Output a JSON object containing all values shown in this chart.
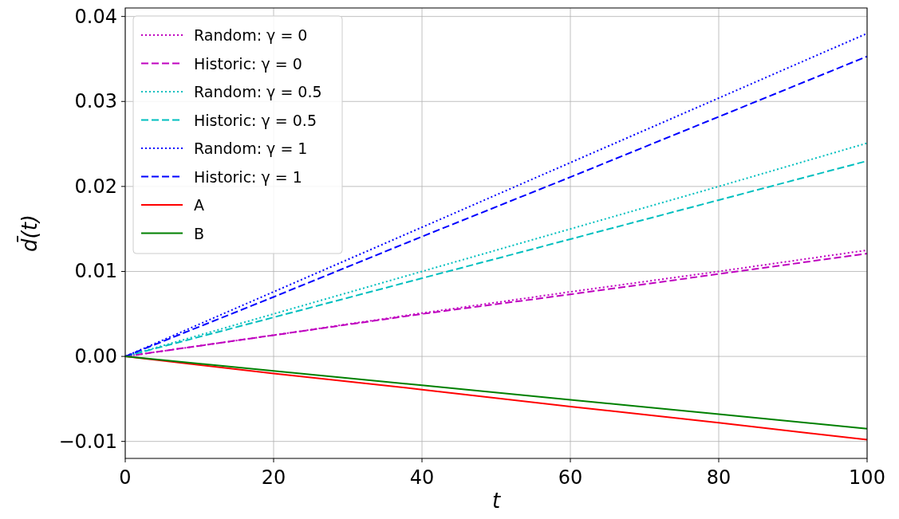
{
  "chart_data": {
    "type": "line",
    "xlabel": "t",
    "ylabel": "d̄(t)",
    "x": [
      0,
      20,
      40,
      60,
      80,
      100
    ],
    "series": [
      {
        "name": "Random: γ = 0",
        "color": "#bf00bf",
        "line_style": "dotted",
        "values": [
          0,
          0.0025,
          0.0051,
          0.0076,
          0.01,
          0.0125
        ]
      },
      {
        "name": "Historic: γ = 0",
        "color": "#bf00bf",
        "line_style": "dashed",
        "values": [
          0,
          0.0025,
          0.005,
          0.0073,
          0.0097,
          0.0121
        ]
      },
      {
        "name": "Random: γ = 0.5",
        "color": "#00bfbf",
        "line_style": "dotted",
        "values": [
          0,
          0.005,
          0.01,
          0.015,
          0.02,
          0.0251
        ]
      },
      {
        "name": "Historic: γ = 0.5",
        "color": "#00bfbf",
        "line_style": "dashed",
        "values": [
          0,
          0.0046,
          0.0092,
          0.0138,
          0.0184,
          0.023
        ]
      },
      {
        "name": "Random: γ = 1",
        "color": "#0000ff",
        "line_style": "dotted",
        "values": [
          0,
          0.0076,
          0.0152,
          0.0228,
          0.0304,
          0.038
        ]
      },
      {
        "name": "Historic: γ = 1",
        "color": "#0000ff",
        "line_style": "dashed",
        "values": [
          0,
          0.007,
          0.0141,
          0.0211,
          0.0282,
          0.0353
        ]
      },
      {
        "name": "A",
        "color": "#ff0000",
        "line_style": "solid",
        "values": [
          0,
          -0.002,
          -0.0039,
          -0.0059,
          -0.0078,
          -0.0098
        ]
      },
      {
        "name": "B",
        "color": "#008000",
        "line_style": "solid",
        "values": [
          0,
          -0.0017,
          -0.0034,
          -0.0051,
          -0.0068,
          -0.0085
        ]
      }
    ],
    "xlim": [
      0,
      100
    ],
    "xticks": [
      0,
      20,
      40,
      60,
      80,
      100
    ],
    "ylim": [
      -0.012,
      0.041
    ],
    "yticks": [
      {
        "value": -0.01,
        "label": "−0.01"
      },
      {
        "value": 0,
        "label": "0.00"
      },
      {
        "value": 0.01,
        "label": "0.01"
      },
      {
        "value": 0.02,
        "label": "0.02"
      },
      {
        "value": 0.03,
        "label": "0.03"
      },
      {
        "value": 0.04,
        "label": "0.04"
      }
    ],
    "grid": true,
    "legend": "top left"
  }
}
